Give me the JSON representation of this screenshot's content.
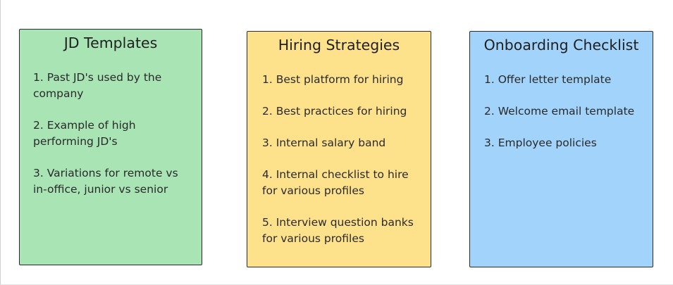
{
  "colors": {
    "jd_fill": "#a9e4b5",
    "hiring_fill": "#fde18b",
    "onboarding_fill": "#a1d3fb",
    "border": "#2b2b2b"
  },
  "cards": {
    "jd": {
      "title": "JD Templates",
      "items": [
        {
          "line1": "1. Past JD's used by the",
          "line2": "company"
        },
        {
          "line1": "2. Example of high",
          "line2": "performing JD's"
        },
        {
          "line1": "3. Variations for remote vs",
          "line2": "in-office, junior vs senior"
        }
      ]
    },
    "hiring": {
      "title": "Hiring Strategies",
      "items": [
        {
          "line1": "1. Best platform for hiring"
        },
        {
          "line1": "2. Best practices for hiring"
        },
        {
          "line1": "3. Internal salary band"
        },
        {
          "line1": "4. Internal checklist to hire",
          "line2": "for various profiles"
        },
        {
          "line1": "5. Interview question banks",
          "line2": "for various profiles"
        }
      ]
    },
    "onboarding": {
      "title": "Onboarding Checklist",
      "items": [
        {
          "line1": "1. Offer letter template"
        },
        {
          "line1": "2. Welcome email template"
        },
        {
          "line1": "3. Employee policies"
        }
      ]
    }
  }
}
